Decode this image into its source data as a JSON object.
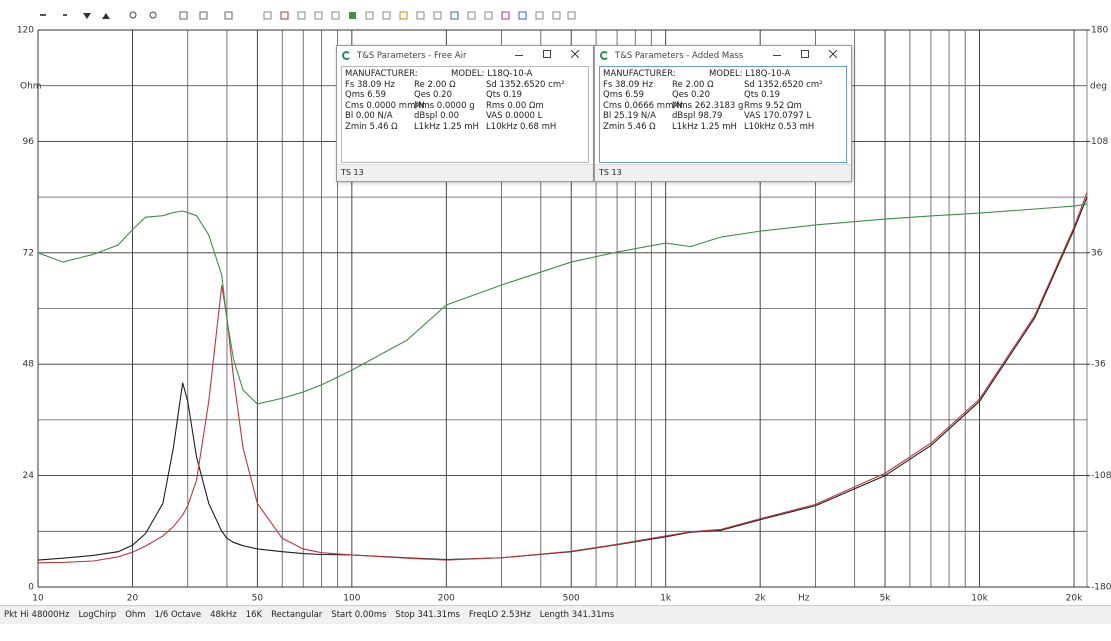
{
  "chart_data": {
    "type": "line",
    "log_x": true,
    "grid": true,
    "x_label": "Hz",
    "y_label": "Ohm",
    "y2_label": "deg",
    "xlim": [
      10,
      22000
    ],
    "ylim": [
      0,
      120
    ],
    "y2lim": [
      -180,
      180
    ],
    "xticks": [
      10,
      20,
      50,
      100,
      200,
      500,
      {
        "value": 1000,
        "label": "1k"
      },
      {
        "value": 2000,
        "label": "2k"
      },
      {
        "value": 5000,
        "label": "5k"
      },
      {
        "value": 10000,
        "label": "10k"
      },
      {
        "value": 20000,
        "label": "20k"
      }
    ],
    "xminorticks": [
      30,
      40,
      60,
      70,
      80,
      90,
      300,
      400,
      600,
      700,
      800,
      900,
      3000,
      4000,
      6000,
      7000,
      8000,
      9000
    ],
    "yticks": [
      0,
      24,
      48,
      72,
      96,
      120
    ],
    "yminorticks": [
      12,
      36,
      60,
      84,
      108
    ],
    "y2ticks": [
      -180,
      -108,
      -36,
      36,
      108,
      180
    ],
    "x": [
      10,
      12,
      15,
      18,
      20,
      22,
      25,
      27,
      28.9,
      30,
      32,
      35,
      38.5,
      40,
      42,
      45,
      50,
      60,
      70,
      80,
      100,
      150,
      200,
      300,
      500,
      700,
      1000,
      1200,
      1500,
      2000,
      3000,
      5000,
      7000,
      10000,
      15000,
      20000,
      22000
    ],
    "series": [
      {
        "color": "#1e1e1e",
        "values": [
          5.8,
          6.2,
          6.8,
          7.6,
          9,
          11.5,
          18,
          30,
          44,
          40,
          28,
          18,
          12,
          10.5,
          9.6,
          8.9,
          8.2,
          7.6,
          7.2,
          7,
          6.9,
          6.3,
          5.9,
          6.3,
          7.6,
          9.1,
          10.8,
          11.8,
          12.2,
          14.5,
          17.5,
          24,
          30.5,
          40,
          58,
          77,
          84
        ]
      },
      {
        "color": "#b83a3a",
        "values": [
          5.2,
          5.3,
          5.6,
          6.5,
          7.5,
          8.8,
          11,
          13,
          15.5,
          17.5,
          23,
          40,
          65,
          58,
          45,
          30,
          18,
          10.5,
          8.2,
          7.4,
          6.9,
          6.2,
          5.8,
          6.3,
          7.7,
          9.2,
          11,
          11.9,
          12.4,
          14.7,
          17.8,
          24.5,
          31,
          40.5,
          58.5,
          77.5,
          85
        ]
      },
      {
        "color": "#3f8f45",
        "axis": "y2",
        "values": [
          36,
          30,
          35,
          41,
          51,
          59,
          60,
          62,
          63,
          62,
          60,
          47.5,
          21.6,
          -7.4,
          -33,
          -52.7,
          -61.7,
          -58,
          -54,
          -49.4,
          -39.8,
          -20.4,
          2.3,
          15.2,
          30,
          36.5,
          42.3,
          40,
          46.2,
          50,
          54,
          57.8,
          59.8,
          61.7,
          64.3,
          66.2,
          67.5
        ]
      }
    ]
  },
  "windows": [
    {
      "title": "T&S Parameters - Free Air",
      "footer": "TS 13",
      "rows": [
        [
          "MANUFACTURER:",
          "MODEL: L18Q-10-A"
        ],
        [
          "Fs  38.09 Hz",
          "Re  2.00 Ω",
          "Sd  1352.6520 cm²"
        ],
        [
          "Qms 6.59",
          "Qes 0.20",
          "Qts 0.19"
        ],
        [
          "Cms 0.0000 mm/N",
          "Mms 0.0000 g",
          "Rms 0.00 Ωm"
        ],
        [
          "Bl  0.00 N/A",
          "dBspl 0.00",
          "VAS  0.0000 L"
        ],
        [
          "Zmin  5.46 Ω",
          "L1kHz  1.25 mH",
          "L10kHz 0.68 mH"
        ]
      ]
    },
    {
      "title": "T&S Parameters - Added Mass",
      "footer": "TS 13",
      "rows": [
        [
          "MANUFACTURER:",
          "MODEL: L18Q-10-A"
        ],
        [
          "Fs  38.09 Hz",
          "Re  2.00 Ω",
          "Sd  1352.6520 cm²"
        ],
        [
          "Qms 6.59",
          "Qes 0.20",
          "Qts 0.19"
        ],
        [
          "Cms 0.0666 mm/N",
          "Mms 262.3183 g",
          "Rms 9.52 Ωm"
        ],
        [
          "Bl  25.19 N/A",
          "dBspl 98.79",
          "VAS  170.0797 L"
        ],
        [
          "Zmin  5.46 Ω",
          "L1kHz  1.25 mH",
          "L10kHz 0.53 mH"
        ]
      ]
    }
  ],
  "status_bar": [
    "Pkt Hi 48000Hz",
    "LogChirp",
    "Ohm",
    "1/6 Octave",
    "48kHz",
    "16K",
    "Rectangular",
    "Start 0.00ms",
    "Stop 341.31ms",
    "FreqLO 2.53Hz",
    "Length 341.31ms"
  ]
}
